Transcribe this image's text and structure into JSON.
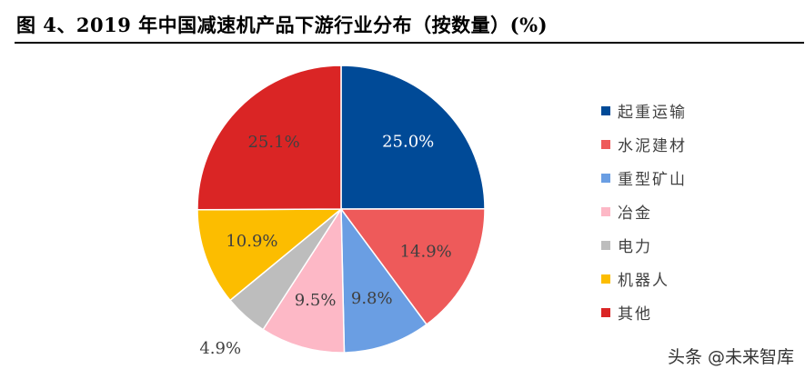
{
  "title": "图 4、2019 年中国减速机产品下游行业分布（按数量）(%)",
  "watermark": "头条 @未来智库",
  "chart_data": {
    "type": "pie",
    "title": "图 4、2019 年中国减速机产品下游行业分布（按数量）(%)",
    "legend_position": "right",
    "start_angle_deg": 0,
    "direction": "clockwise",
    "slices": [
      {
        "name": "起重运输",
        "value": 25.0,
        "label": "25.0%",
        "color": "#004A97",
        "label_color": "#ffffff"
      },
      {
        "name": "水泥建材",
        "value": 14.9,
        "label": "14.9%",
        "color": "#EE5A5A",
        "label_color": "#404040"
      },
      {
        "name": "重型矿山",
        "value": 9.8,
        "label": "9.8%",
        "color": "#6A9EE3",
        "label_color": "#404040"
      },
      {
        "name": "冶金",
        "value": 9.5,
        "label": "9.5%",
        "color": "#FDB8C6",
        "label_color": "#404040"
      },
      {
        "name": "电力",
        "value": 4.9,
        "label": "4.9%",
        "color": "#BDBDBD",
        "label_color": "#404040"
      },
      {
        "name": "机器人",
        "value": 10.9,
        "label": "10.9%",
        "color": "#FCBD00",
        "label_color": "#404040"
      },
      {
        "name": "其他",
        "value": 25.1,
        "label": "25.1%",
        "color": "#DA2525",
        "label_color": "#404040"
      }
    ]
  }
}
